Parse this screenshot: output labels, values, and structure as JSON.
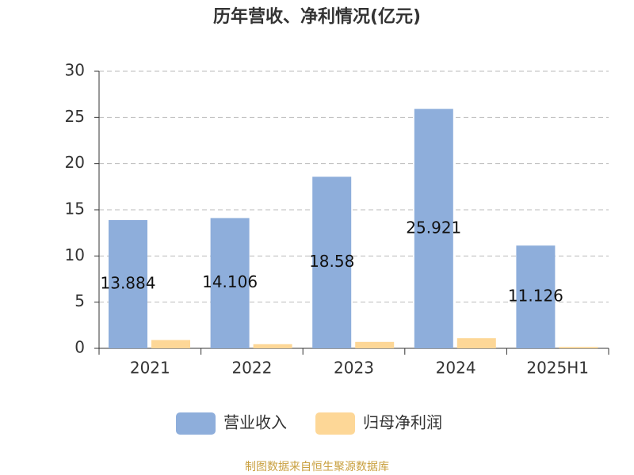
{
  "chart_data": {
    "type": "bar",
    "title": "历年营收、净利情况(亿元)",
    "categories": [
      "2021",
      "2022",
      "2023",
      "2024",
      "2025H1"
    ],
    "series": [
      {
        "name": "营业收入",
        "color": "#8eaedb",
        "values": [
          13.884,
          14.106,
          18.58,
          25.921,
          11.126
        ]
      },
      {
        "name": "归母净利润",
        "color": "#fdd797",
        "values": [
          0.9,
          0.45,
          0.7,
          1.1,
          0.15
        ]
      }
    ],
    "ylim": [
      0,
      30
    ],
    "yticks": [
      0,
      5,
      10,
      15,
      20,
      25,
      30
    ],
    "grid": true,
    "legend": "bottom",
    "source": "制图数据来自恒生聚源数据库"
  }
}
